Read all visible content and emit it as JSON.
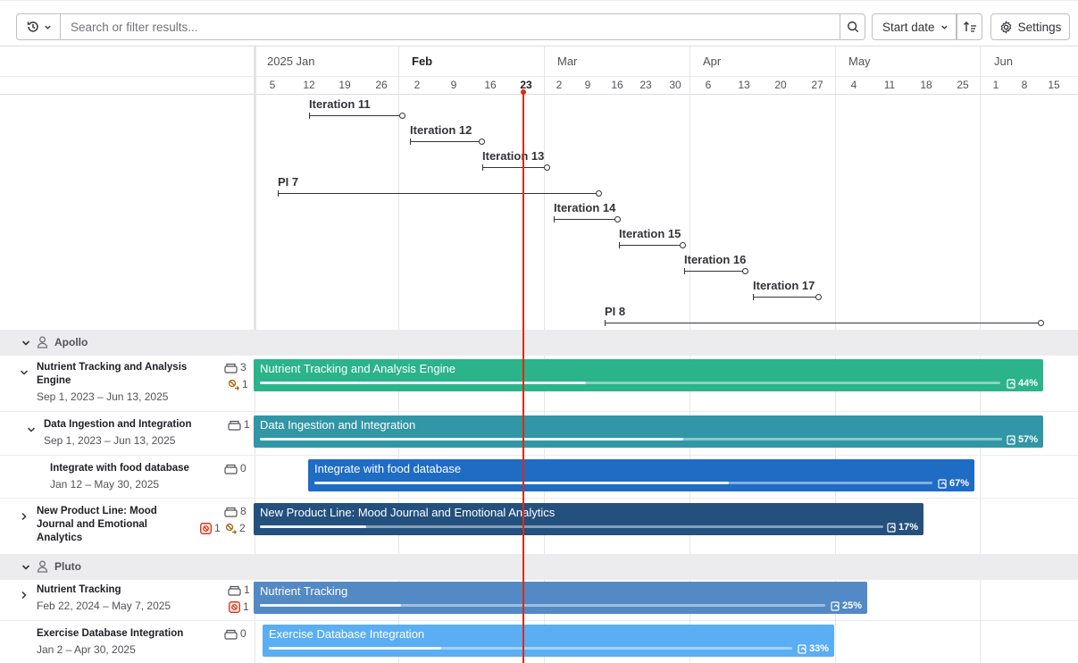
{
  "toolbar": {
    "search_placeholder": "Search or filter results...",
    "sort_label": "Start date",
    "settings_label": "Settings"
  },
  "timeline": {
    "months": [
      "2025 Jan",
      "Feb",
      "Mar",
      "Apr",
      "May",
      "Jun"
    ],
    "days": [
      "5",
      "12",
      "19",
      "26",
      "2",
      "9",
      "16",
      "23",
      "2",
      "9",
      "16",
      "23",
      "30",
      "6",
      "13",
      "20",
      "27",
      "4",
      "11",
      "18",
      "25",
      "1",
      "8",
      "15"
    ],
    "today_label": "23"
  },
  "iterations": [
    {
      "label": "Iteration 11"
    },
    {
      "label": "Iteration 12"
    },
    {
      "label": "Iteration 13"
    },
    {
      "label": "PI 7"
    },
    {
      "label": "Iteration 14"
    },
    {
      "label": "Iteration 15"
    },
    {
      "label": "Iteration 16"
    },
    {
      "label": "Iteration 17"
    },
    {
      "label": "PI 8"
    }
  ],
  "groups": [
    {
      "name": "Apollo",
      "items": [
        {
          "title": "Nutrient Tracking and Analysis Engine",
          "dates": "Sep 1, 2023 – Jun 13, 2025",
          "children": "3",
          "blocked": "",
          "blocking": "1",
          "progress": 0.44,
          "progress_label": "44%",
          "color": "#2bb38a"
        },
        {
          "title": "Data Ingestion and Integration",
          "dates": "Sep 1, 2023 – Jun 13, 2025",
          "children": "1",
          "blocked": "",
          "blocking": "",
          "progress": 0.57,
          "progress_label": "57%",
          "color": "#3196a6"
        },
        {
          "title": "Integrate with food database",
          "dates": "Jan 12 – May 30, 2025",
          "children": "0",
          "blocked": "",
          "blocking": "",
          "progress": 0.67,
          "progress_label": "67%",
          "color": "#1f6cc5"
        },
        {
          "title": "New Product Line: Mood Journal and Emotional Analytics",
          "dates": "",
          "children": "8",
          "blocked": "1",
          "blocking": "2",
          "progress": 0.17,
          "progress_label": "17%",
          "color": "#24507e"
        }
      ]
    },
    {
      "name": "Pluto",
      "items": [
        {
          "title": "Nutrient Tracking",
          "dates": "Feb 22, 2024 – May 7, 2025",
          "children": "1",
          "blocked": "1",
          "blocking": "",
          "progress": 0.25,
          "progress_label": "25%",
          "color": "#5389c4"
        },
        {
          "title": "Exercise Database Integration",
          "dates": "Jan 2 – Apr 30, 2025",
          "children": "0",
          "blocked": "",
          "blocking": "",
          "progress": 0.33,
          "progress_label": "33%",
          "color": "#5aaef3"
        }
      ]
    }
  ]
}
